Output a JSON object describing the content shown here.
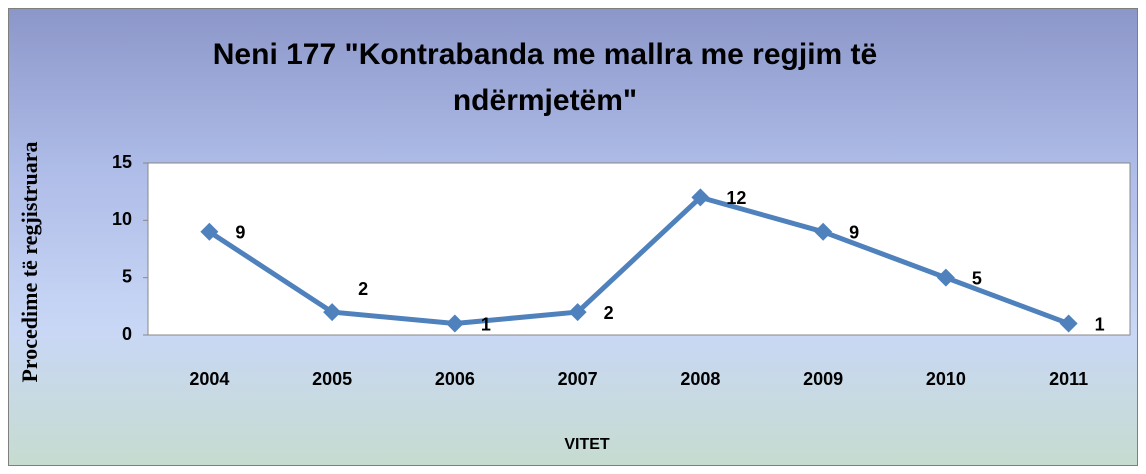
{
  "chart_data": {
    "type": "line",
    "title": "Neni 177 \"Kontrabanda me mallra me regjim të ndërmjetëm\"",
    "x_label": "VITET",
    "y_label": "Procedime të regjistruara",
    "categories": [
      "2004",
      "2005",
      "2006",
      "2007",
      "2008",
      "2009",
      "2010",
      "2011"
    ],
    "series": [
      {
        "color": "#4f81bd",
        "values": [
          9,
          2,
          1,
          2,
          12,
          9,
          5,
          1
        ]
      }
    ],
    "ylim": [
      0,
      15
    ],
    "yticks": [
      0,
      5,
      10,
      15
    ],
    "grid": false
  }
}
